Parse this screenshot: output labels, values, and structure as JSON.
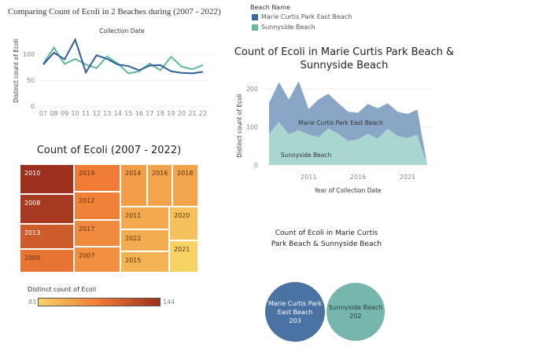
{
  "legend": {
    "title": "Beach Name",
    "items": [
      {
        "label": "Marie Curtis Park East Beach",
        "color": "#3d6a9e"
      },
      {
        "label": "Sunnyside Beach",
        "color": "#6ab8a6"
      }
    ]
  },
  "chart_data": [
    {
      "type": "line",
      "title": "Comparing Count of Ecoli in 2 Beaches during (2007 - 2022)",
      "subtitle": "Collection Date",
      "ylabel": "Distinct count of Ecoli",
      "xlabel": "",
      "categories": [
        "07",
        "08",
        "09",
        "10",
        "11",
        "12",
        "13",
        "14",
        "15",
        "16",
        "17",
        "18",
        "19",
        "20",
        "21",
        "22"
      ],
      "yticks": [
        "0",
        "50",
        "100"
      ],
      "ylim": [
        0,
        130
      ],
      "grid": true,
      "series": [
        {
          "name": "Marie Curtis Park East Beach",
          "color": "#2f5f99",
          "values": [
            80,
            103,
            90,
            128,
            65,
            98,
            91,
            80,
            77,
            69,
            78,
            79,
            67,
            64,
            63,
            66
          ]
        },
        {
          "name": "Sunnyside Beach",
          "color": "#5fb8a0",
          "values": [
            82,
            113,
            81,
            91,
            80,
            73,
            96,
            82,
            63,
            67,
            82,
            69,
            95,
            76,
            71,
            79
          ]
        }
      ]
    },
    {
      "type": "area",
      "stacked": true,
      "title": "Count of Ecoli in Marie Curtis Park Beach & Sunnyside Beach",
      "title_lines": [
        "Count of Ecoli in Marie Curtis Park Beach &",
        "Sunnyside Beach"
      ],
      "xlabel": "Year of Collection Date",
      "ylabel": "Distinct count of Ecoli",
      "xticks": [
        "2011",
        "2016",
        "2021"
      ],
      "yticks": [
        "0",
        "100",
        "200"
      ],
      "ylim": [
        0,
        230
      ],
      "x": [
        2007,
        2008,
        2009,
        2010,
        2011,
        2012,
        2013,
        2014,
        2015,
        2016,
        2017,
        2018,
        2019,
        2020,
        2021,
        2022,
        2023
      ],
      "series": [
        {
          "name": "Sunnyside Beach",
          "color": "#a9d6cf",
          "values": [
            82,
            113,
            81,
            91,
            80,
            73,
            96,
            82,
            63,
            67,
            82,
            69,
            95,
            76,
            71,
            79,
            0
          ]
        },
        {
          "name": "Marie Curtis Park East Beach",
          "color": "#8aa6c6",
          "values": [
            81,
            104,
            91,
            129,
            67,
            99,
            91,
            80,
            77,
            70,
            78,
            80,
            67,
            64,
            63,
            66,
            0
          ]
        }
      ]
    },
    {
      "type": "treemap",
      "title": "Count of Ecoli (2007 - 2022)",
      "color_legend": {
        "title": "Distinct count of Ecoli",
        "min": "83",
        "max": "144",
        "colors": [
          "#f6d365",
          "#ef7a35",
          "#9c2f1e"
        ]
      },
      "items": [
        {
          "label": "2010",
          "value": 144
        },
        {
          "label": "2008",
          "value": 140
        },
        {
          "label": "2013",
          "value": 126
        },
        {
          "label": "2009",
          "value": 116
        },
        {
          "label": "2019",
          "value": 113
        },
        {
          "label": "2012",
          "value": 111
        },
        {
          "label": "2017",
          "value": 108
        },
        {
          "label": "2007",
          "value": 106
        },
        {
          "label": "2014",
          "value": 101
        },
        {
          "label": "2016",
          "value": 99
        },
        {
          "label": "2018",
          "value": 99
        },
        {
          "label": "2011",
          "value": 97
        },
        {
          "label": "2022",
          "value": 96
        },
        {
          "label": "2015",
          "value": 94
        },
        {
          "label": "2020",
          "value": 89
        },
        {
          "label": "2021",
          "value": 83
        }
      ]
    },
    {
      "type": "bubble",
      "title_lines": [
        "Count of Ecoli in Marie Curtis",
        "Park Beach & Sunnyside Beach"
      ],
      "items": [
        {
          "label_lines": [
            "Marie Curtis Park",
            "East Beach"
          ],
          "value": "203",
          "color": "#4a72a3"
        },
        {
          "label_lines": [
            "Sunnyside Beach"
          ],
          "value": "202",
          "color": "#76b6ac"
        }
      ]
    }
  ]
}
